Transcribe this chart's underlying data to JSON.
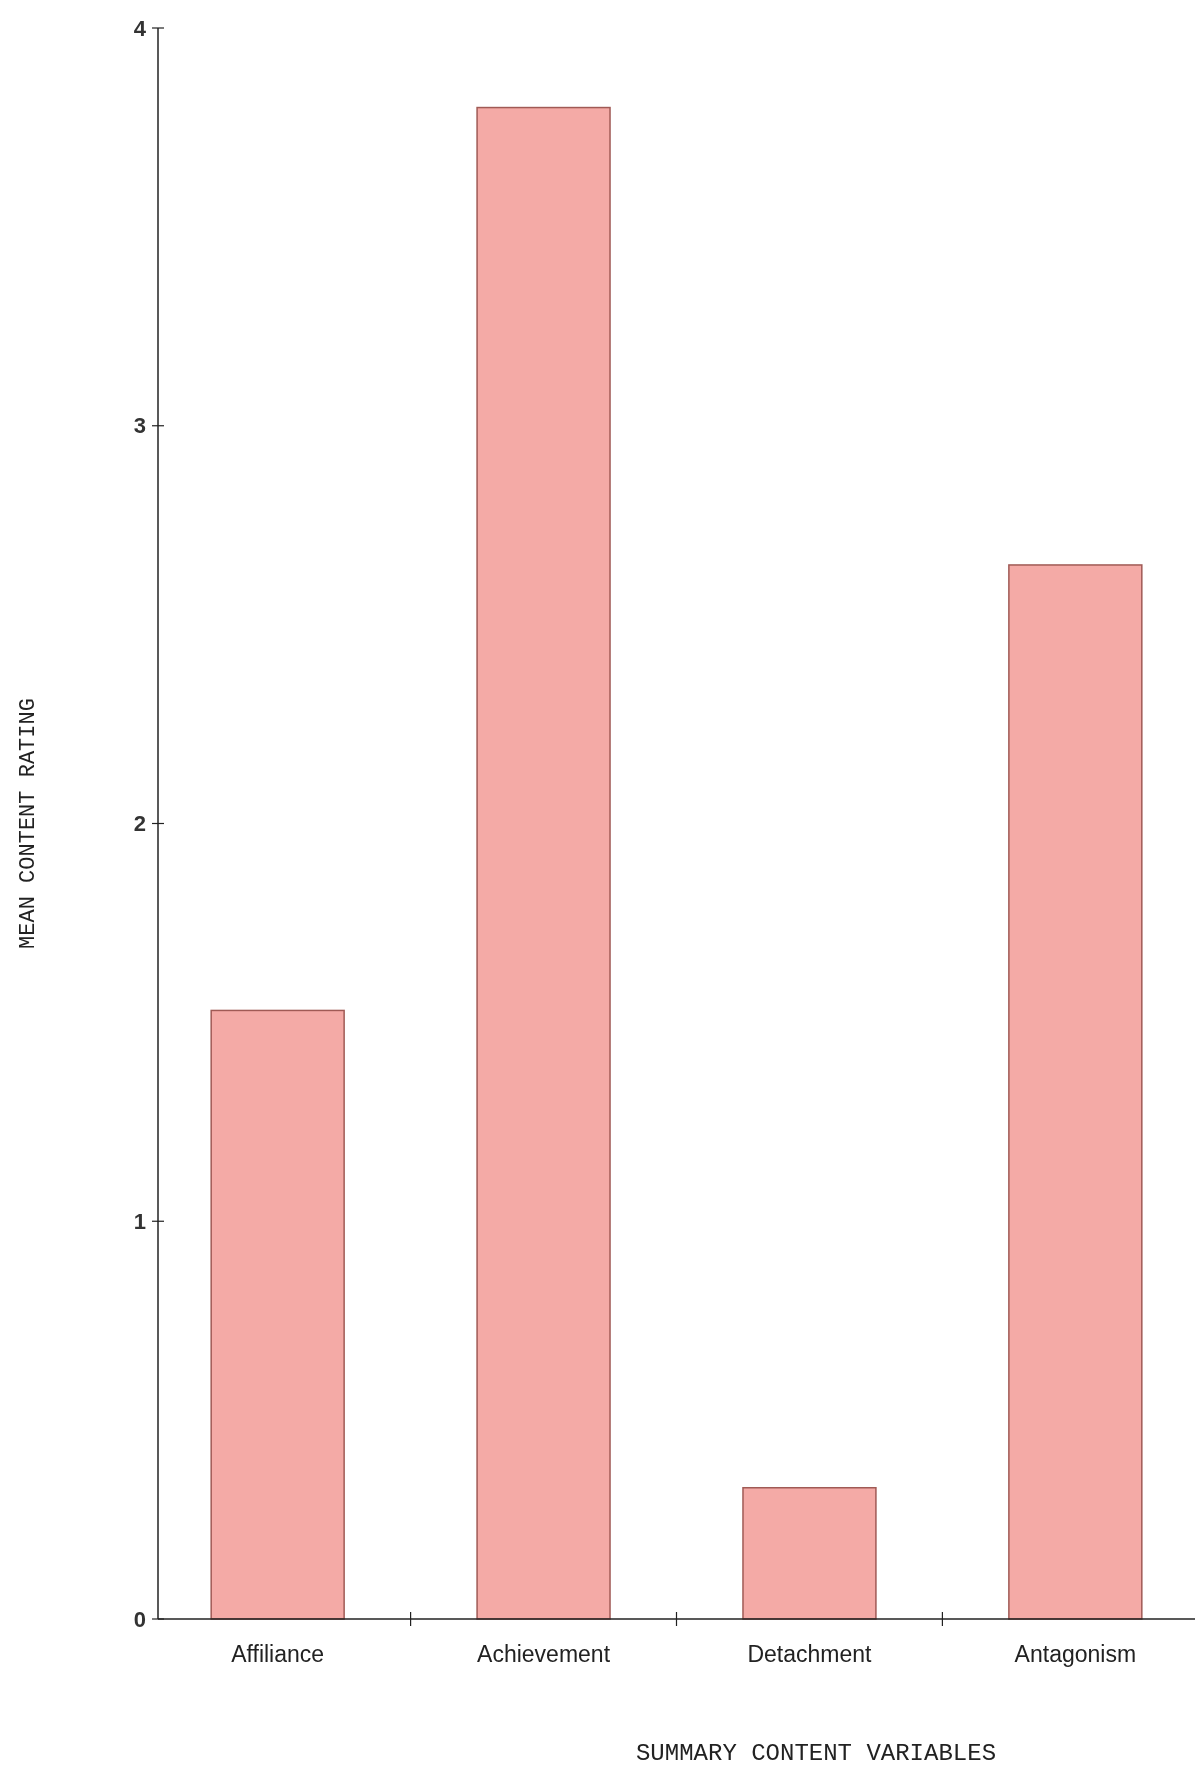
{
  "chart_data": {
    "type": "bar",
    "xlabel": "SUMMARY CONTENT VARIABLES",
    "ylabel": "MEAN CONTENT RATING",
    "categories": [
      "Affiliance",
      "Achievement",
      "Detachment",
      "Antagonism"
    ],
    "values": [
      1.53,
      3.8,
      0.33,
      2.65
    ],
    "color": "#f4aaa6",
    "ylim": [
      0,
      4
    ],
    "yticks": [
      0,
      1,
      2,
      3,
      4
    ],
    "grid": false
  }
}
